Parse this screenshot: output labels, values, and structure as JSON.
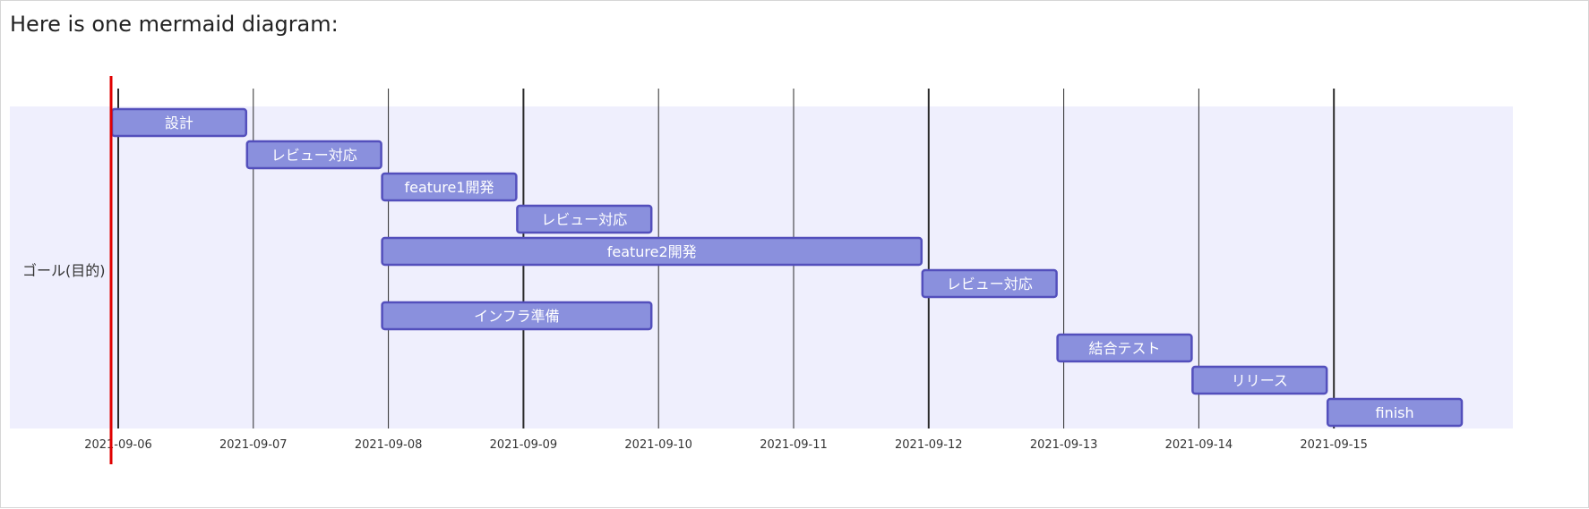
{
  "heading": "Here is one mermaid diagram:",
  "gantt": {
    "section": "ゴール(目的)",
    "axis_dates": [
      "2021-09-06",
      "2021-09-07",
      "2021-09-08",
      "2021-09-09",
      "2021-09-10",
      "2021-09-11",
      "2021-09-12",
      "2021-09-13",
      "2021-09-14",
      "2021-09-15"
    ],
    "today_marker": "2021-09-06",
    "tasks": [
      {
        "label": "設計",
        "start": "2021-09-06",
        "end": "2021-09-07"
      },
      {
        "label": "レビュー対応",
        "start": "2021-09-07",
        "end": "2021-09-08"
      },
      {
        "label": "feature1開発",
        "start": "2021-09-08",
        "end": "2021-09-09"
      },
      {
        "label": "レビュー対応",
        "start": "2021-09-09",
        "end": "2021-09-10"
      },
      {
        "label": "feature2開発",
        "start": "2021-09-08",
        "end": "2021-09-12"
      },
      {
        "label": "レビュー対応",
        "start": "2021-09-12",
        "end": "2021-09-13"
      },
      {
        "label": "インフラ準備",
        "start": "2021-09-08",
        "end": "2021-09-10"
      },
      {
        "label": "結合テスト",
        "start": "2021-09-13",
        "end": "2021-09-14"
      },
      {
        "label": "リリース",
        "start": "2021-09-14",
        "end": "2021-09-15"
      },
      {
        "label": "finish",
        "start": "2021-09-15",
        "end": "2021-09-16"
      }
    ],
    "colors": {
      "section_bg": "#efeffd",
      "bar_fill": "#8a90dd",
      "bar_stroke": "#534fbc",
      "today_line": "#e00000",
      "grid": "#2a2a2a",
      "bar_text": "#ffffff",
      "label_text": "#333333"
    }
  }
}
